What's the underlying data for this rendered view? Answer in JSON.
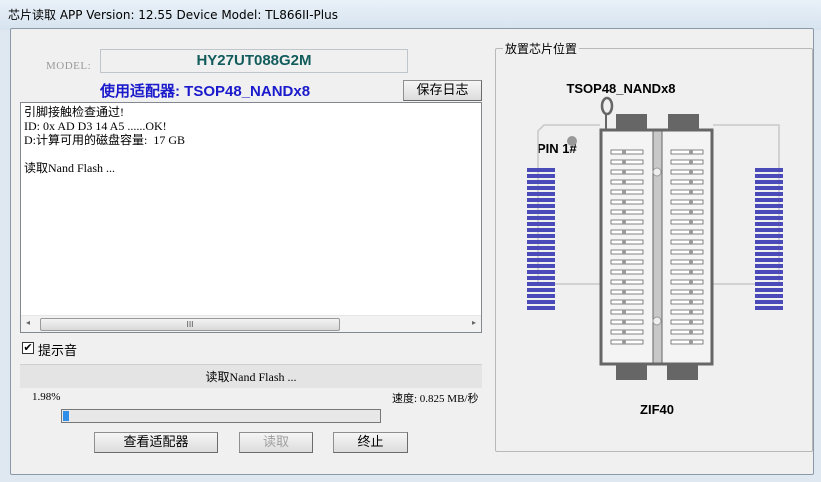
{
  "window": {
    "title": "芯片读取    APP Version: 12.55 Device Model: TL866II-Plus"
  },
  "model": {
    "label": "MODEL:",
    "value": "HY27UT088G2M"
  },
  "adapter": {
    "text": "使用适配器: TSOP48_NANDx8"
  },
  "save_log_label": "保存日志",
  "log": {
    "lines": [
      "引脚接触检查通过!",
      "ID: 0x AD D3 14 A5 ......OK!",
      "D:计算可用的磁盘容量:  17 GB",
      "",
      "读取Nand Flash ..."
    ],
    "scroll_thumb": "III"
  },
  "beep": {
    "label": "提示音",
    "checked": true,
    "mark": "✔"
  },
  "status": "读取Nand Flash ...",
  "progress": {
    "percent_label": "1.98%",
    "value": 1.98,
    "speed": "速度: 0.825 MB/秒",
    "color": "#2f8ee8"
  },
  "buttons": {
    "view_adapter": "查看适配器",
    "read": "读取",
    "stop": "终止"
  },
  "placement": {
    "group_title": "放置芯片位置",
    "chip_label": "TSOP48_NANDx8",
    "pin1_label": "PIN 1#",
    "socket_label": "ZIF40",
    "pin_color": "#4a4ab8"
  }
}
